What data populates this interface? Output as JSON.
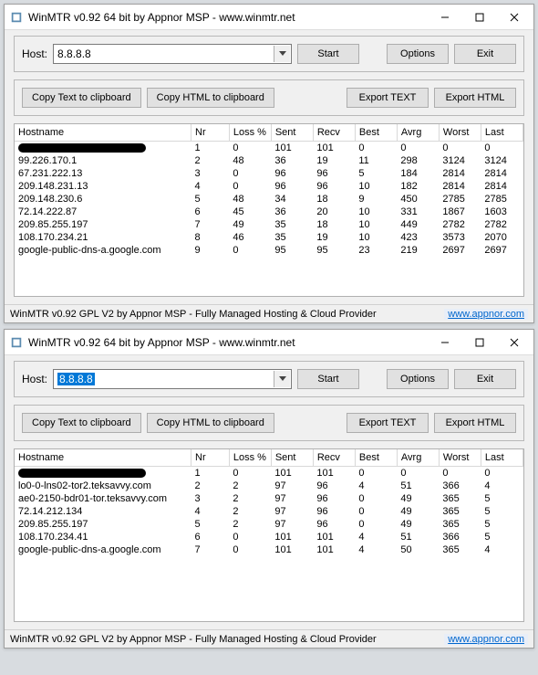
{
  "app": {
    "title": "WinMTR v0.92 64 bit by Appnor MSP - www.winmtr.net",
    "status": "WinMTR v0.92 GPL V2 by Appnor MSP - Fully Managed Hosting & Cloud Provider",
    "status_link": "www.appnor.com"
  },
  "labels": {
    "host": "Host:",
    "start": "Start",
    "options": "Options",
    "exit": "Exit",
    "copy_text": "Copy Text to clipboard",
    "copy_html": "Copy HTML to clipboard",
    "export_text": "Export TEXT",
    "export_html": "Export HTML"
  },
  "columns": [
    "Hostname",
    "Nr",
    "Loss %",
    "Sent",
    "Recv",
    "Best",
    "Avrg",
    "Worst",
    "Last"
  ],
  "win1": {
    "host_value": "8.8.8.8",
    "host_selected": false,
    "rows": [
      {
        "host": "",
        "nr": "1",
        "loss": "0",
        "sent": "101",
        "recv": "101",
        "best": "0",
        "avrg": "0",
        "worst": "0",
        "last": "0",
        "redacted": true
      },
      {
        "host": "99.226.170.1",
        "nr": "2",
        "loss": "48",
        "sent": "36",
        "recv": "19",
        "best": "11",
        "avrg": "298",
        "worst": "3124",
        "last": "3124"
      },
      {
        "host": "67.231.222.13",
        "nr": "3",
        "loss": "0",
        "sent": "96",
        "recv": "96",
        "best": "5",
        "avrg": "184",
        "worst": "2814",
        "last": "2814"
      },
      {
        "host": "209.148.231.13",
        "nr": "4",
        "loss": "0",
        "sent": "96",
        "recv": "96",
        "best": "10",
        "avrg": "182",
        "worst": "2814",
        "last": "2814"
      },
      {
        "host": "209.148.230.6",
        "nr": "5",
        "loss": "48",
        "sent": "34",
        "recv": "18",
        "best": "9",
        "avrg": "450",
        "worst": "2785",
        "last": "2785"
      },
      {
        "host": "72.14.222.87",
        "nr": "6",
        "loss": "45",
        "sent": "36",
        "recv": "20",
        "best": "10",
        "avrg": "331",
        "worst": "1867",
        "last": "1603"
      },
      {
        "host": "209.85.255.197",
        "nr": "7",
        "loss": "49",
        "sent": "35",
        "recv": "18",
        "best": "10",
        "avrg": "449",
        "worst": "2782",
        "last": "2782"
      },
      {
        "host": "108.170.234.21",
        "nr": "8",
        "loss": "46",
        "sent": "35",
        "recv": "19",
        "best": "10",
        "avrg": "423",
        "worst": "3573",
        "last": "2070"
      },
      {
        "host": "google-public-dns-a.google.com",
        "nr": "9",
        "loss": "0",
        "sent": "95",
        "recv": "95",
        "best": "23",
        "avrg": "219",
        "worst": "2697",
        "last": "2697"
      }
    ]
  },
  "win2": {
    "host_value": "8.8.8.8",
    "host_selected": true,
    "rows": [
      {
        "host": "",
        "nr": "1",
        "loss": "0",
        "sent": "101",
        "recv": "101",
        "best": "0",
        "avrg": "0",
        "worst": "0",
        "last": "0",
        "redacted": true
      },
      {
        "host": "lo0-0-lns02-tor2.teksavvy.com",
        "nr": "2",
        "loss": "2",
        "sent": "97",
        "recv": "96",
        "best": "4",
        "avrg": "51",
        "worst": "366",
        "last": "4"
      },
      {
        "host": "ae0-2150-bdr01-tor.teksavvy.com",
        "nr": "3",
        "loss": "2",
        "sent": "97",
        "recv": "96",
        "best": "0",
        "avrg": "49",
        "worst": "365",
        "last": "5"
      },
      {
        "host": "72.14.212.134",
        "nr": "4",
        "loss": "2",
        "sent": "97",
        "recv": "96",
        "best": "0",
        "avrg": "49",
        "worst": "365",
        "last": "5"
      },
      {
        "host": "209.85.255.197",
        "nr": "5",
        "loss": "2",
        "sent": "97",
        "recv": "96",
        "best": "0",
        "avrg": "49",
        "worst": "365",
        "last": "5"
      },
      {
        "host": "108.170.234.41",
        "nr": "6",
        "loss": "0",
        "sent": "101",
        "recv": "101",
        "best": "4",
        "avrg": "51",
        "worst": "366",
        "last": "5"
      },
      {
        "host": "google-public-dns-a.google.com",
        "nr": "7",
        "loss": "0",
        "sent": "101",
        "recv": "101",
        "best": "4",
        "avrg": "50",
        "worst": "365",
        "last": "4"
      }
    ]
  },
  "colors": {
    "window_bg": "#f0f0f0",
    "panel_border": "#b8b8b8",
    "button_bg": "#e1e1e1",
    "button_border": "#adadad",
    "selection": "#0078d7",
    "link": "#0066cc"
  }
}
